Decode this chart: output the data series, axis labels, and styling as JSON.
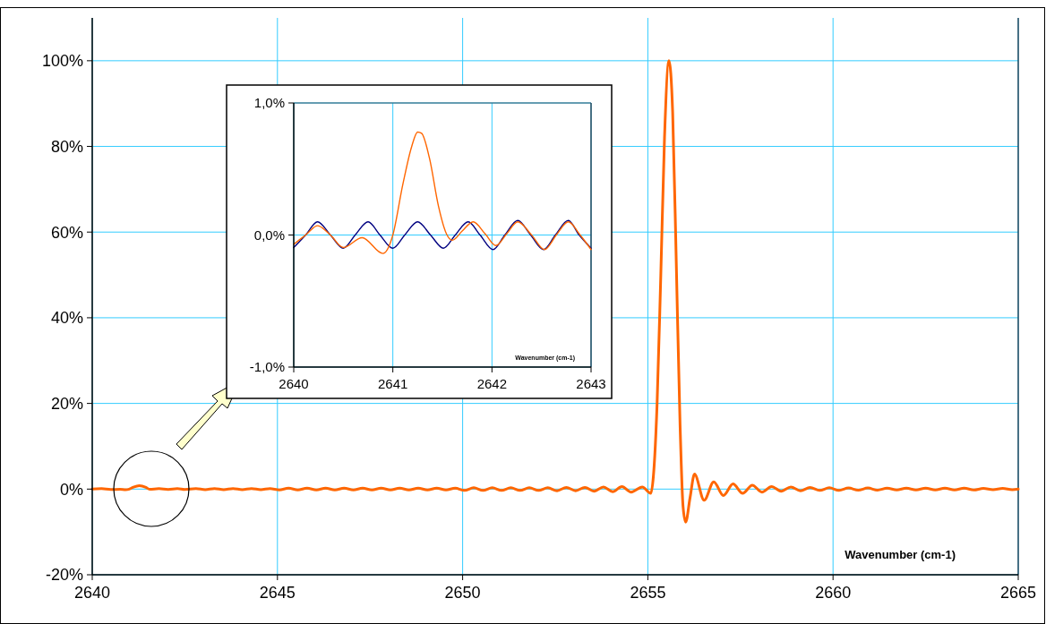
{
  "chart_data": [
    {
      "type": "line",
      "xlabel": "Wavenumber (cm-1)",
      "xlim": [
        2640,
        2665
      ],
      "xticks": [
        2640,
        2645,
        2650,
        2655,
        2660,
        2665
      ],
      "ylim": [
        -20,
        110
      ],
      "yticks": [
        {
          "value": -20,
          "label": "-20%"
        },
        {
          "value": 0,
          "label": "0%"
        },
        {
          "value": 20,
          "label": "20%"
        },
        {
          "value": 40,
          "label": "40%"
        },
        {
          "value": 60,
          "label": "60%"
        },
        {
          "value": 80,
          "label": "80%"
        },
        {
          "value": 100,
          "label": "100%"
        }
      ],
      "grid": true,
      "series": [
        {
          "color": "#ff6600",
          "x": [
            2640,
            2640.25,
            2640.5,
            2640.75,
            2640.9,
            2641.0,
            2641.1,
            2641.27,
            2641.45,
            2641.55,
            2641.8,
            2642.05,
            2642.3,
            2642.5,
            2642.8,
            2643.05,
            2643.3,
            2643.55,
            2643.8,
            2644.05,
            2644.3,
            2644.55,
            2644.8,
            2645.05,
            2645.3,
            2645.55,
            2645.8,
            2646.05,
            2646.3,
            2646.55,
            2646.8,
            2647.05,
            2647.3,
            2647.55,
            2647.8,
            2648.05,
            2648.3,
            2648.55,
            2648.8,
            2649.05,
            2649.3,
            2649.55,
            2649.8,
            2650.05,
            2650.3,
            2650.55,
            2650.8,
            2651.05,
            2651.3,
            2651.55,
            2651.8,
            2652.05,
            2652.3,
            2652.55,
            2652.8,
            2653.05,
            2653.3,
            2653.55,
            2653.8,
            2654.05,
            2654.3,
            2654.55,
            2654.85,
            2655.08,
            2655.15,
            2655.25,
            2655.35,
            2655.45,
            2655.57,
            2655.67,
            2655.77,
            2655.87,
            2655.95,
            2656.02,
            2656.14,
            2656.26,
            2656.52,
            2656.78,
            2657.04,
            2657.3,
            2657.56,
            2657.82,
            2658.08,
            2658.34,
            2658.6,
            2658.86,
            2659.12,
            2659.38,
            2659.64,
            2659.9,
            2660.16,
            2660.42,
            2660.68,
            2660.94,
            2661.2,
            2661.46,
            2661.72,
            2661.98,
            2662.24,
            2662.5,
            2662.76,
            2663.02,
            2663.28,
            2663.54,
            2663.8,
            2664.06,
            2664.32,
            2664.58,
            2664.84,
            2665
          ],
          "values": [
            0,
            0.1,
            -0.1,
            -0.05,
            -0.15,
            0,
            0.4,
            0.8,
            0.4,
            -0.05,
            0.1,
            -0.1,
            0.1,
            -0.1,
            0.1,
            -0.12,
            0.1,
            -0.12,
            0.1,
            -0.12,
            0.1,
            -0.12,
            0.1,
            -0.2,
            0.2,
            -0.2,
            0.2,
            -0.2,
            0.2,
            -0.2,
            0.2,
            -0.2,
            0.2,
            -0.2,
            0.2,
            -0.2,
            0.2,
            -0.2,
            0.2,
            -0.2,
            0.2,
            -0.2,
            0.2,
            -0.3,
            0.3,
            -0.3,
            0.3,
            -0.3,
            0.3,
            -0.3,
            0.3,
            -0.3,
            0.3,
            -0.4,
            0.4,
            -0.4,
            0.4,
            -0.5,
            0.5,
            -0.6,
            0.6,
            -0.7,
            0.5,
            -1.0,
            3,
            20,
            50,
            82,
            100,
            88,
            52,
            15,
            -4,
            -7.7,
            -2,
            3.5,
            -2.6,
            1.7,
            -1.5,
            1.2,
            -1.0,
            0.9,
            -0.7,
            0.6,
            -0.5,
            0.5,
            -0.4,
            0.4,
            -0.3,
            0.3,
            -0.3,
            0.25,
            -0.25,
            0.25,
            -0.25,
            0.2,
            -0.2,
            0.2,
            -0.2,
            0.2,
            -0.2,
            0.2,
            -0.2,
            0.2,
            -0.2,
            0.15,
            -0.15,
            0.15,
            -0.15,
            0
          ]
        }
      ]
    },
    {
      "type": "line",
      "xlabel": "Wavenumber (cm-1)",
      "xlim": [
        2640,
        2643
      ],
      "xticks": [
        2640,
        2641,
        2642,
        2643
      ],
      "ylim": [
        -1,
        1
      ],
      "yticks": [
        {
          "value": -1,
          "label": "-1,0%"
        },
        {
          "value": 0,
          "label": "0,0%"
        },
        {
          "value": 1,
          "label": "1,0%"
        }
      ],
      "grid": true,
      "series": [
        {
          "color": "#000080",
          "x": [
            2640,
            2640.12,
            2640.24,
            2640.37,
            2640.5,
            2640.62,
            2640.75,
            2640.87,
            2641.0,
            2641.12,
            2641.25,
            2641.38,
            2641.51,
            2641.63,
            2641.76,
            2641.88,
            2642.01,
            2642.13,
            2642.26,
            2642.39,
            2642.52,
            2642.64,
            2642.77,
            2642.88,
            2643
          ],
          "values": [
            -0.095,
            0,
            0.1,
            0,
            -0.1,
            0,
            0.1,
            0,
            -0.1,
            0,
            0.1,
            0,
            -0.1,
            0,
            0.1,
            0,
            -0.11,
            0,
            0.11,
            0,
            -0.11,
            0,
            0.11,
            0,
            -0.1
          ]
        },
        {
          "color": "#ff6600",
          "x": [
            2640,
            2640.12,
            2640.24,
            2640.37,
            2640.5,
            2640.69,
            2640.9,
            2641.0,
            2641.1,
            2641.19,
            2641.25,
            2641.29,
            2641.37,
            2641.46,
            2641.54,
            2641.6,
            2641.7,
            2641.81,
            2641.93,
            2642.04,
            2642.15,
            2642.26,
            2642.4,
            2642.53,
            2642.65,
            2642.77,
            2642.89,
            2643
          ],
          "values": [
            -0.07,
            0,
            0.07,
            0,
            -0.095,
            -0.02,
            -0.14,
            0,
            0.38,
            0.67,
            0.78,
            0.77,
            0.58,
            0.22,
            0.01,
            -0.04,
            0.03,
            0.1,
            0.01,
            -0.08,
            0.01,
            0.1,
            0,
            -0.11,
            0,
            0.1,
            0,
            -0.11
          ]
        }
      ]
    }
  ]
}
